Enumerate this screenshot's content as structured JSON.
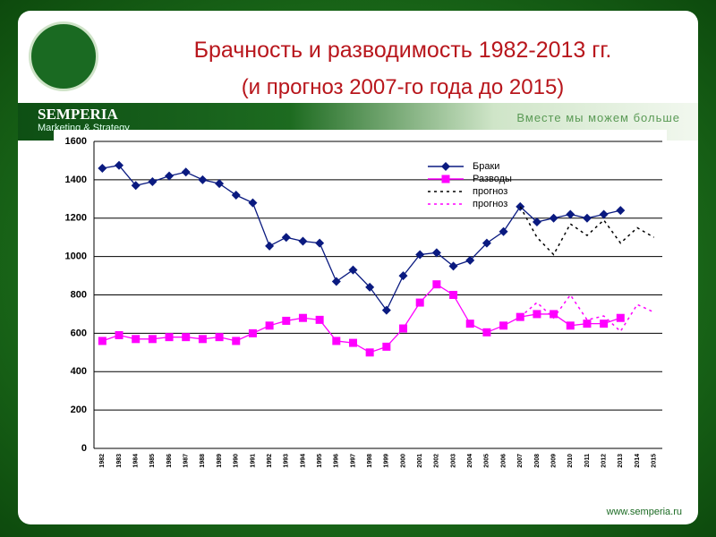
{
  "header": {
    "title": "Брачность и разводимость 1982-2013 гг.",
    "subtitle": "(и прогноз 2007-го года до 2015)",
    "brand": "SEMPERIA",
    "brand_sub": "Marketing & Strategy",
    "slogan": "Вместе мы можем больше",
    "footer": "www.semperia.ru"
  },
  "chart_data": {
    "type": "line",
    "categories": [
      "1982",
      "1983",
      "1984",
      "1985",
      "1986",
      "1987",
      "1988",
      "1989",
      "1990",
      "1991",
      "1992",
      "1993",
      "1994",
      "1995",
      "1996",
      "1997",
      "1998",
      "1999",
      "2000",
      "2001",
      "2002",
      "2003",
      "2004",
      "2005",
      "2006",
      "2007",
      "2008",
      "2009",
      "2010",
      "2011",
      "2012",
      "2013",
      "2014",
      "2015"
    ],
    "series": [
      {
        "name": "Браки",
        "color": "#0a1a80",
        "marker": "diamond",
        "dashed": false,
        "values": [
          1460,
          1475,
          1370,
          1390,
          1420,
          1440,
          1400,
          1380,
          1320,
          1280,
          1055,
          1100,
          1080,
          1070,
          870,
          930,
          840,
          720,
          900,
          1010,
          1020,
          950,
          980,
          1070,
          1130,
          1260,
          1180,
          1200,
          1220,
          1200,
          1220,
          1240,
          null,
          null
        ]
      },
      {
        "name": "Разводы",
        "color": "#ff00ff",
        "marker": "square",
        "dashed": false,
        "values": [
          560,
          590,
          570,
          570,
          580,
          580,
          570,
          580,
          560,
          600,
          640,
          665,
          680,
          670,
          560,
          550,
          500,
          530,
          625,
          760,
          855,
          800,
          650,
          605,
          640,
          685,
          700,
          700,
          640,
          650,
          650,
          680,
          null,
          null
        ]
      },
      {
        "name": "прогноз",
        "color": "#000000",
        "marker": "none",
        "dashed": true,
        "values": [
          null,
          null,
          null,
          null,
          null,
          null,
          null,
          null,
          null,
          null,
          null,
          null,
          null,
          null,
          null,
          null,
          null,
          null,
          null,
          null,
          null,
          null,
          null,
          null,
          null,
          1260,
          1100,
          1010,
          1170,
          1110,
          1190,
          1070,
          1150,
          1100
        ]
      },
      {
        "name": "прогноз",
        "color": "#ff00ff",
        "marker": "none",
        "dashed": true,
        "values": [
          null,
          null,
          null,
          null,
          null,
          null,
          null,
          null,
          null,
          null,
          null,
          null,
          null,
          null,
          null,
          null,
          null,
          null,
          null,
          null,
          null,
          null,
          null,
          null,
          null,
          685,
          760,
          680,
          800,
          670,
          690,
          610,
          750,
          710
        ]
      }
    ],
    "ylim": [
      0,
      1600
    ],
    "yticks": [
      0,
      200,
      400,
      600,
      800,
      1000,
      1200,
      1400,
      1600
    ],
    "grid": true
  }
}
